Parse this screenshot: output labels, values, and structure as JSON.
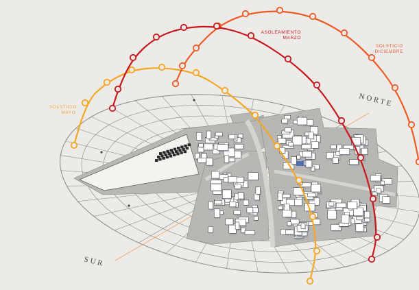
{
  "labels": {
    "solsticio_mayo": [
      "SOLSTICIO",
      "MAYO"
    ],
    "asoleamiento_marzo": [
      "ASOLEAMIENTO",
      "MARZO"
    ],
    "solsticio_diciembre": [
      "SOLSTICIO",
      "DICIEMBRE"
    ],
    "norte": "NORTE",
    "sur": "SUR"
  },
  "colors": {
    "background": "#ecebe7",
    "grid": "#8f8f8f",
    "ground": "#b9b7b4",
    "building": "#ffffff",
    "building_shade": "#2a2a2a",
    "sun_mayo": "#f5a623",
    "sun_marzo": "#c8161d",
    "sun_diciembre": "#ee5a24",
    "label_mayo": "#f0a43a",
    "label_marzo": "#c8161d",
    "label_diciembre": "#e8603a",
    "axis": "#f2a15a"
  }
}
